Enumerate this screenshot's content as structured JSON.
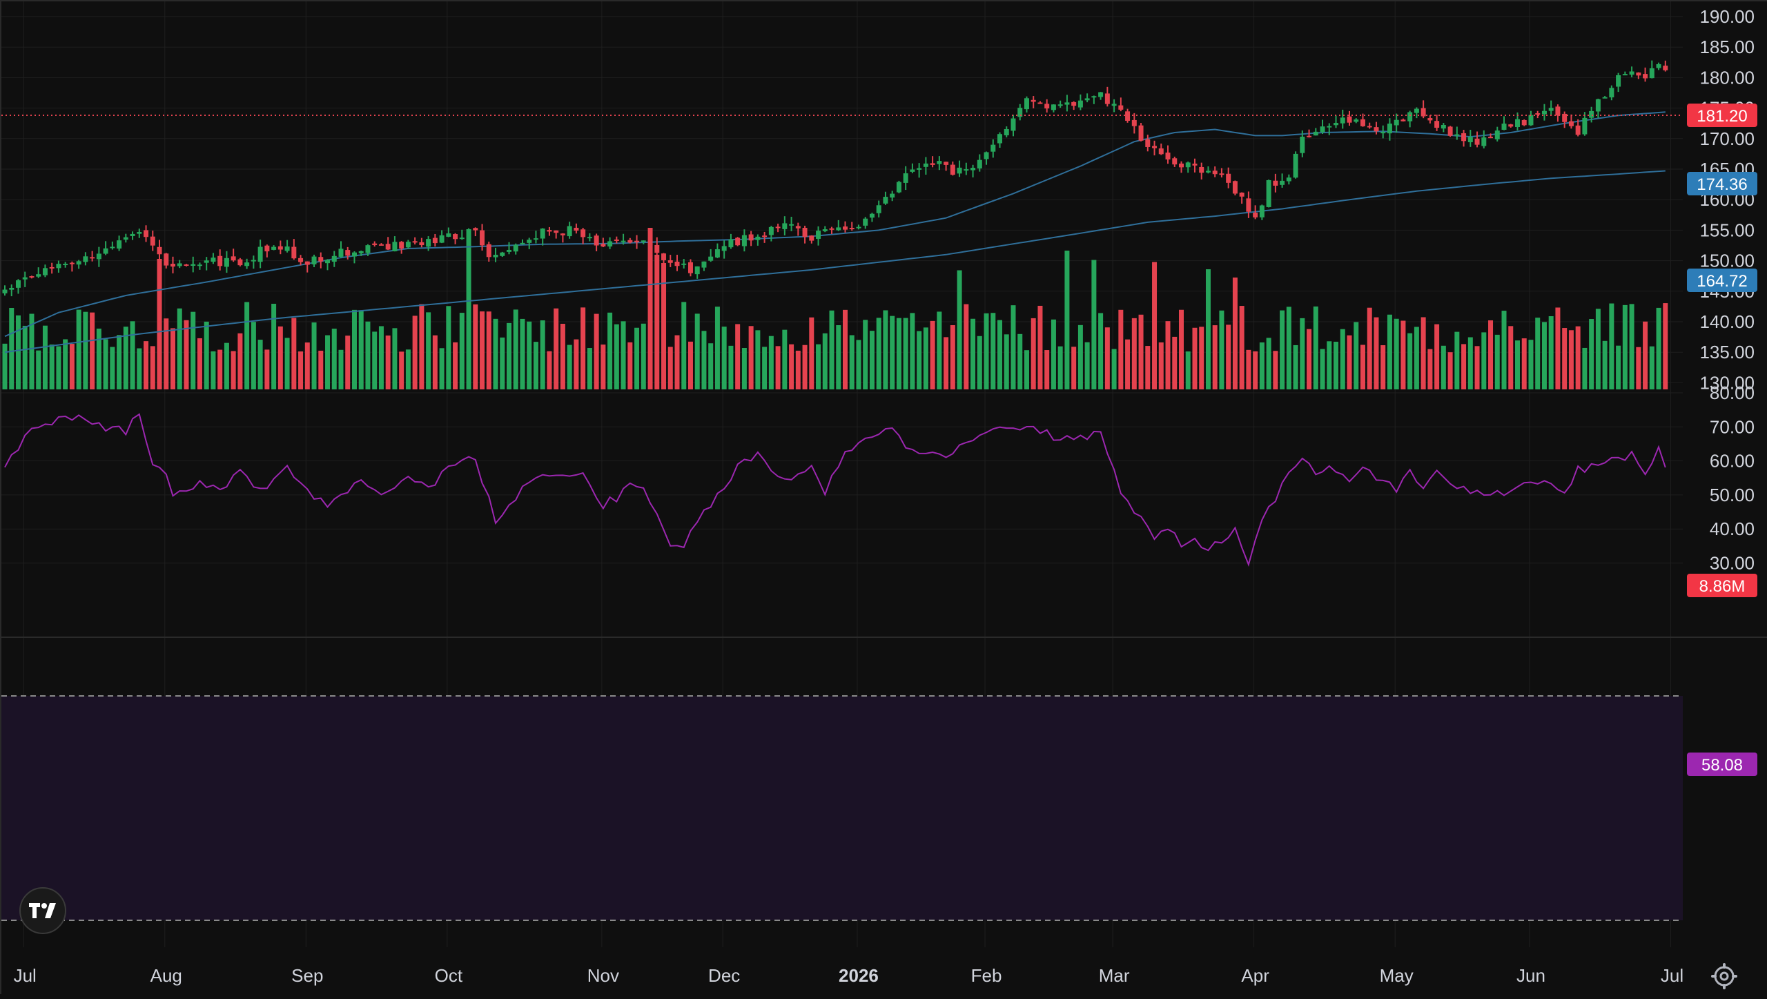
{
  "colors": {
    "background": "#0f0f0f",
    "grid": "#1f1f1f",
    "up": "#26a65b",
    "down": "#e5434f",
    "ma_line": "#2f6f9a",
    "rsi_line": "#9c27b0",
    "rsi_band": "#1b1226",
    "last_price_line": "#e5434f",
    "badge_price": "#f23645",
    "badge_ma50": "#2d7db8",
    "badge_ma200": "#2d7db8",
    "badge_volume": "#f23645",
    "badge_rsi": "#9c27b0"
  },
  "icons": {
    "logo": "tradingview-logo-icon",
    "settings": "gear-icon"
  },
  "chart_data": {
    "type": "candlestick",
    "price_axis": {
      "ticks": [
        "190.00",
        "185.00",
        "180.00",
        "175.00",
        "170.00",
        "165.00",
        "160.00",
        "155.00",
        "150.00",
        "145.00",
        "140.00",
        "135.00",
        "130.00"
      ],
      "ylim": [
        129.3,
        191.3
      ]
    },
    "rsi_axis": {
      "ticks": [
        "80.00",
        "70.00",
        "60.00",
        "50.00",
        "40.00",
        "30.00"
      ],
      "ylim": [
        28.5,
        80.0
      ],
      "upper_band": 70,
      "lower_band": 30
    },
    "time_axis": {
      "labels": [
        {
          "text": "Jul",
          "bold": false
        },
        {
          "text": "Aug",
          "bold": false
        },
        {
          "text": "Sep",
          "bold": false
        },
        {
          "text": "Oct",
          "bold": false
        },
        {
          "text": "Nov",
          "bold": false
        },
        {
          "text": "Dec",
          "bold": false
        },
        {
          "text": "2026",
          "bold": true
        },
        {
          "text": "Feb",
          "bold": false
        },
        {
          "text": "Mar",
          "bold": false
        },
        {
          "text": "Apr",
          "bold": false
        },
        {
          "text": "May",
          "bold": false
        },
        {
          "text": "Jun",
          "bold": false
        },
        {
          "text": "Jul",
          "bold": false
        }
      ],
      "label_bar_index": [
        3,
        24,
        45,
        66,
        89,
        107,
        127,
        146,
        165,
        186,
        207,
        227,
        248
      ],
      "total_bars": 250
    },
    "last_values": {
      "price": "181.20",
      "ma_50": "174.36",
      "ma_200": "164.72",
      "volume": "8.86M",
      "rsi": "58.08"
    },
    "price_anchors": [
      [
        0,
        145.2
      ],
      [
        3,
        147.0
      ],
      [
        8,
        149.5
      ],
      [
        12,
        150.5
      ],
      [
        16,
        152.0
      ],
      [
        20,
        154.5
      ],
      [
        22,
        152.0
      ],
      [
        25,
        148.5
      ],
      [
        30,
        150.0
      ],
      [
        35,
        149.5
      ],
      [
        40,
        153.0
      ],
      [
        45,
        149.5
      ],
      [
        50,
        151.5
      ],
      [
        55,
        152.0
      ],
      [
        60,
        152.5
      ],
      [
        65,
        153.5
      ],
      [
        70,
        155.0
      ],
      [
        72,
        151.0
      ],
      [
        75,
        152.5
      ],
      [
        80,
        154.5
      ],
      [
        85,
        155.0
      ],
      [
        88,
        153.0
      ],
      [
        92,
        153.5
      ],
      [
        95,
        154.0
      ],
      [
        98,
        150.0
      ],
      [
        102,
        148.5
      ],
      [
        104,
        150.5
      ],
      [
        108,
        153.0
      ],
      [
        112,
        154.0
      ],
      [
        115,
        156.0
      ],
      [
        120,
        154.0
      ],
      [
        125,
        155.5
      ],
      [
        128,
        156.5
      ],
      [
        130,
        158.5
      ],
      [
        134,
        164.0
      ],
      [
        138,
        166.0
      ],
      [
        142,
        164.5
      ],
      [
        146,
        167.0
      ],
      [
        149,
        171.5
      ],
      [
        152,
        176.0
      ],
      [
        156,
        175.0
      ],
      [
        160,
        176.5
      ],
      [
        163,
        177.0
      ],
      [
        166,
        175.0
      ],
      [
        169,
        170.0
      ],
      [
        171,
        168.0
      ],
      [
        175,
        166.0
      ],
      [
        178,
        164.5
      ],
      [
        181,
        163.5
      ],
      [
        184,
        160.0
      ],
      [
        186,
        157.0
      ],
      [
        188,
        162.5
      ],
      [
        191,
        164.0
      ],
      [
        193,
        170.5
      ],
      [
        197,
        172.0
      ],
      [
        200,
        173.0
      ],
      [
        204,
        171.0
      ],
      [
        207,
        172.5
      ],
      [
        210,
        174.5
      ],
      [
        213,
        172.0
      ],
      [
        216,
        170.5
      ],
      [
        219,
        169.5
      ],
      [
        222,
        171.5
      ],
      [
        226,
        173.0
      ],
      [
        230,
        174.5
      ],
      [
        234,
        171.0
      ],
      [
        236,
        175.0
      ],
      [
        240,
        180.0
      ],
      [
        242,
        181.5
      ],
      [
        244,
        179.5
      ],
      [
        246,
        183.0
      ],
      [
        247,
        181.2
      ]
    ],
    "ma_50_anchors": [
      [
        0,
        137.6
      ],
      [
        8,
        141.5
      ],
      [
        18,
        144.3
      ],
      [
        30,
        146.5
      ],
      [
        40,
        148.5
      ],
      [
        50,
        150.5
      ],
      [
        60,
        152.0
      ],
      [
        70,
        152.3
      ],
      [
        80,
        152.7
      ],
      [
        90,
        152.8
      ],
      [
        100,
        153.2
      ],
      [
        110,
        153.5
      ],
      [
        120,
        154.0
      ],
      [
        130,
        155.0
      ],
      [
        140,
        157.0
      ],
      [
        150,
        161.0
      ],
      [
        160,
        165.5
      ],
      [
        168,
        169.5
      ],
      [
        174,
        171.0
      ],
      [
        180,
        171.5
      ],
      [
        186,
        170.5
      ],
      [
        190,
        170.5
      ],
      [
        196,
        171.0
      ],
      [
        205,
        171.2
      ],
      [
        212,
        170.8
      ],
      [
        218,
        170.3
      ],
      [
        224,
        171.0
      ],
      [
        232,
        172.5
      ],
      [
        240,
        173.8
      ],
      [
        247,
        174.36
      ]
    ],
    "ma_200_anchors": [
      [
        0,
        135.0
      ],
      [
        20,
        138.0
      ],
      [
        40,
        140.5
      ],
      [
        60,
        142.5
      ],
      [
        80,
        144.5
      ],
      [
        100,
        146.5
      ],
      [
        120,
        148.5
      ],
      [
        140,
        151.0
      ],
      [
        160,
        154.5
      ],
      [
        170,
        156.3
      ],
      [
        180,
        157.3
      ],
      [
        190,
        158.5
      ],
      [
        200,
        160.0
      ],
      [
        210,
        161.4
      ],
      [
        220,
        162.5
      ],
      [
        230,
        163.5
      ],
      [
        240,
        164.2
      ],
      [
        247,
        164.72
      ]
    ],
    "rsi_anchors": [
      [
        0,
        59
      ],
      [
        3,
        67
      ],
      [
        6,
        71
      ],
      [
        9,
        73
      ],
      [
        12,
        72
      ],
      [
        15,
        70
      ],
      [
        18,
        69
      ],
      [
        20,
        74
      ],
      [
        22,
        60
      ],
      [
        24,
        55
      ],
      [
        25,
        49
      ],
      [
        28,
        53
      ],
      [
        32,
        52
      ],
      [
        35,
        56
      ],
      [
        38,
        51
      ],
      [
        40,
        55
      ],
      [
        42,
        59
      ],
      [
        45,
        51
      ],
      [
        48,
        46
      ],
      [
        50,
        50
      ],
      [
        53,
        53
      ],
      [
        56,
        49
      ],
      [
        60,
        55
      ],
      [
        63,
        52
      ],
      [
        66,
        58
      ],
      [
        68,
        61
      ],
      [
        70,
        60
      ],
      [
        72,
        49
      ],
      [
        73,
        41
      ],
      [
        76,
        49
      ],
      [
        79,
        56
      ],
      [
        82,
        55
      ],
      [
        86,
        56
      ],
      [
        89,
        47
      ],
      [
        93,
        52
      ],
      [
        95,
        51
      ],
      [
        97,
        44
      ],
      [
        99,
        35
      ],
      [
        101,
        34
      ],
      [
        103,
        42
      ],
      [
        106,
        50
      ],
      [
        109,
        58
      ],
      [
        112,
        62
      ],
      [
        114,
        57
      ],
      [
        117,
        54
      ],
      [
        120,
        59
      ],
      [
        122,
        51
      ],
      [
        125,
        63
      ],
      [
        128,
        66
      ],
      [
        131,
        70
      ],
      [
        133,
        67
      ],
      [
        135,
        63
      ],
      [
        137,
        63
      ],
      [
        140,
        62
      ],
      [
        143,
        65
      ],
      [
        146,
        68
      ],
      [
        149,
        71
      ],
      [
        152,
        69
      ],
      [
        155,
        68
      ],
      [
        158,
        66
      ],
      [
        161,
        67
      ],
      [
        163,
        70
      ],
      [
        165,
        56
      ],
      [
        167,
        47
      ],
      [
        169,
        45
      ],
      [
        171,
        38
      ],
      [
        173,
        40
      ],
      [
        175,
        35
      ],
      [
        177,
        36
      ],
      [
        179,
        33
      ],
      [
        181,
        37
      ],
      [
        183,
        40
      ],
      [
        185,
        30
      ],
      [
        187,
        44
      ],
      [
        189,
        47
      ],
      [
        191,
        58
      ],
      [
        193,
        60
      ],
      [
        195,
        56
      ],
      [
        198,
        58
      ],
      [
        200,
        55
      ],
      [
        202,
        59
      ],
      [
        204,
        54
      ],
      [
        207,
        52
      ],
      [
        209,
        57
      ],
      [
        211,
        53
      ],
      [
        213,
        56
      ],
      [
        215,
        54
      ],
      [
        218,
        51
      ],
      [
        221,
        49
      ],
      [
        224,
        52
      ],
      [
        226,
        53
      ],
      [
        229,
        54
      ],
      [
        232,
        50
      ],
      [
        234,
        57
      ],
      [
        236,
        59
      ],
      [
        239,
        60
      ],
      [
        242,
        62
      ],
      [
        244,
        55
      ],
      [
        246,
        64
      ],
      [
        247,
        58.08
      ]
    ],
    "volume_profile": {
      "max_millions": 20,
      "baseline": 6.5,
      "spike_bars": [
        [
          23,
          12.6
        ],
        [
          69,
          14.8
        ],
        [
          96,
          15.6
        ],
        [
          97,
          13.0
        ],
        [
          98,
          12.2
        ],
        [
          142,
          11.5
        ],
        [
          158,
          13.4
        ],
        [
          162,
          12.5
        ],
        [
          171,
          12.3
        ],
        [
          179,
          11.6
        ],
        [
          183,
          10.8
        ]
      ]
    }
  }
}
